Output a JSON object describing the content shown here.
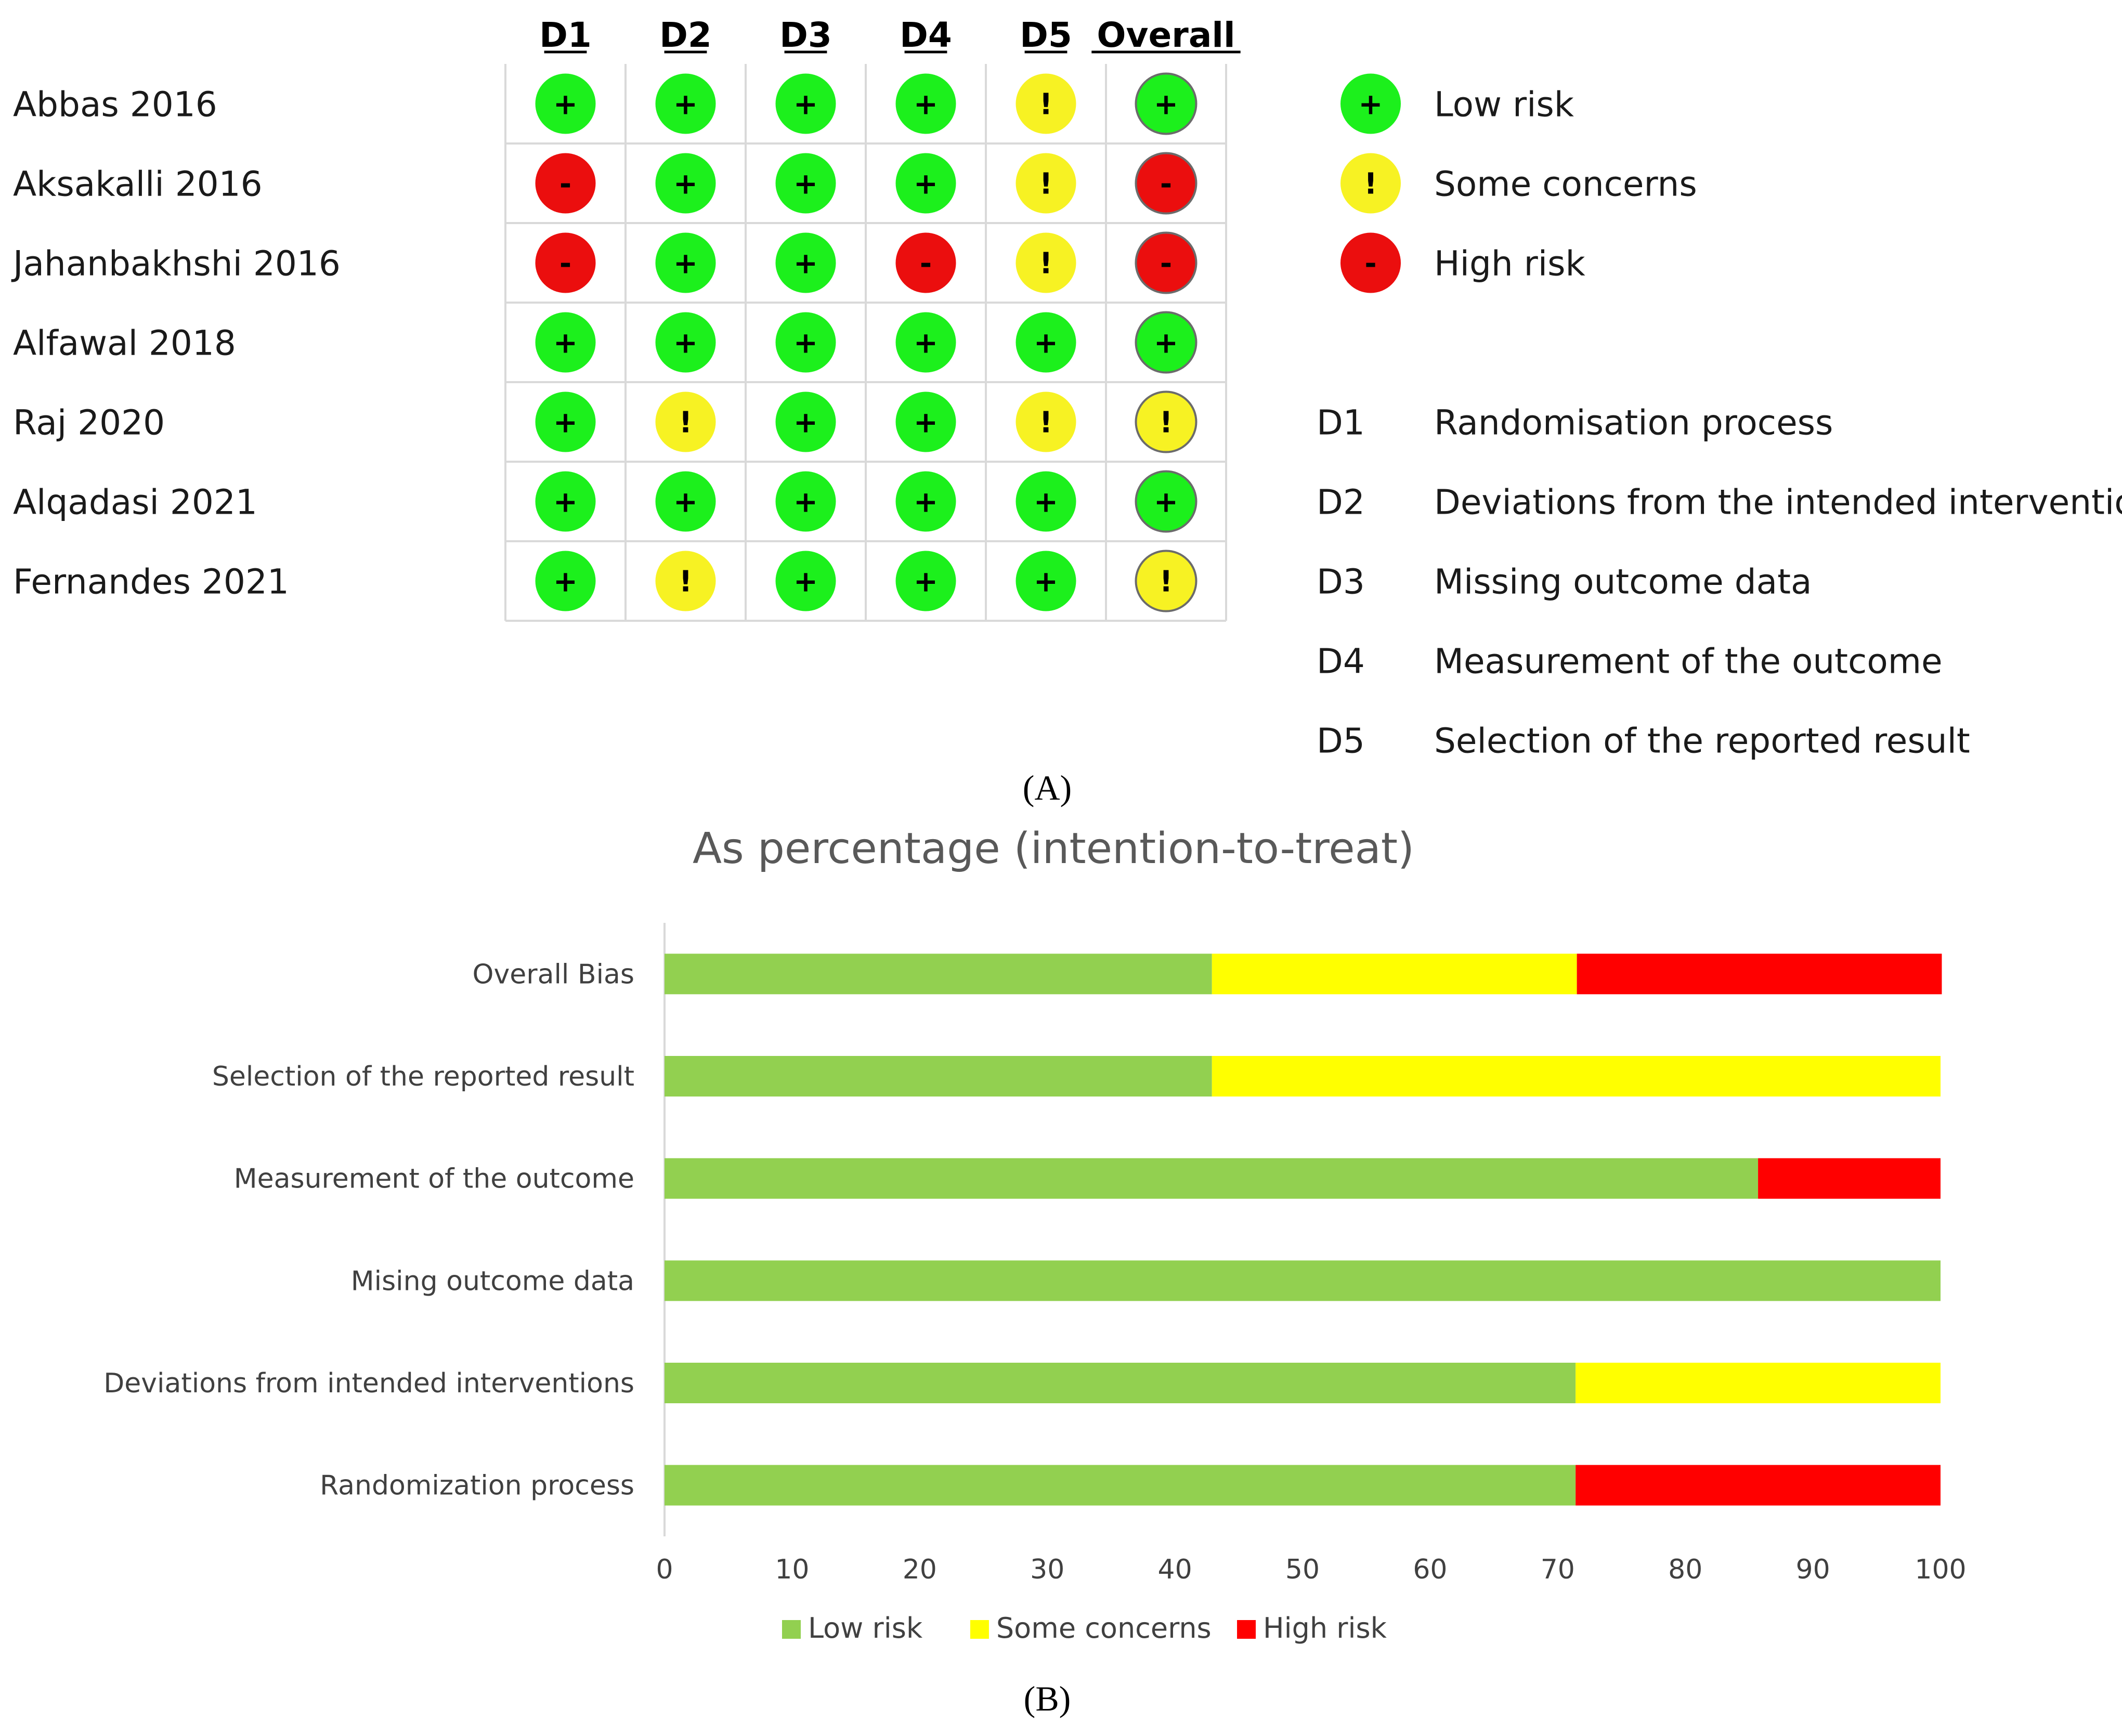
{
  "colors": {
    "low": "#1cf01c",
    "some": "#f7f223",
    "high": "#eb0e0e",
    "bar_low": "#92d050",
    "bar_some": "#ffff00",
    "bar_high": "#ff0000",
    "grid": "#d9d9d9",
    "text": "#1a1a1a",
    "title": "#595959"
  },
  "panel_a": {
    "label": "(A)",
    "domains": [
      "D1",
      "D2",
      "D3",
      "D4",
      "D5",
      "Overall"
    ],
    "symbols": {
      "low": "+",
      "some": "!",
      "high": "-"
    },
    "studies": [
      {
        "name": "Abbas 2016",
        "ratings": [
          "low",
          "low",
          "low",
          "low",
          "some",
          "low"
        ]
      },
      {
        "name": "Aksakalli 2016",
        "ratings": [
          "high",
          "low",
          "low",
          "low",
          "some",
          "high"
        ]
      },
      {
        "name": "Jahanbakhshi 2016",
        "ratings": [
          "high",
          "low",
          "low",
          "high",
          "some",
          "high"
        ]
      },
      {
        "name": "Alfawal 2018",
        "ratings": [
          "low",
          "low",
          "low",
          "low",
          "low",
          "low"
        ]
      },
      {
        "name": "Raj 2020",
        "ratings": [
          "low",
          "some",
          "low",
          "low",
          "some",
          "some"
        ]
      },
      {
        "name": "Alqadasi 2021",
        "ratings": [
          "low",
          "low",
          "low",
          "low",
          "low",
          "low"
        ]
      },
      {
        "name": "Fernandes 2021",
        "ratings": [
          "low",
          "some",
          "low",
          "low",
          "low",
          "some"
        ]
      }
    ],
    "legend": [
      {
        "key": "low",
        "label": "Low risk"
      },
      {
        "key": "some",
        "label": "Some concerns"
      },
      {
        "key": "high",
        "label": "High risk"
      }
    ],
    "domain_legend": [
      {
        "code": "D1",
        "label": "Randomisation process"
      },
      {
        "code": "D2",
        "label": "Deviations from the intended interventions"
      },
      {
        "code": "D3",
        "label": "Missing outcome data"
      },
      {
        "code": "D4",
        "label": "Measurement of the outcome"
      },
      {
        "code": "D5",
        "label": "Selection of the reported result"
      }
    ]
  },
  "panel_b": {
    "label": "(B)"
  },
  "chart_data": {
    "type": "bar",
    "orientation": "horizontal",
    "stacked": true,
    "title": "As percentage (intention-to-treat)",
    "categories": [
      "Overall Bias",
      "Selection of the reported result",
      "Measurement of the outcome",
      "Mising outcome data",
      "Deviations from intended interventions",
      "Randomization process"
    ],
    "series": [
      {
        "name": "Low risk",
        "key": "low",
        "values": [
          42.9,
          42.9,
          85.7,
          100,
          71.4,
          71.4
        ]
      },
      {
        "name": "Some concerns",
        "key": "some",
        "values": [
          28.6,
          57.1,
          0,
          0,
          28.6,
          0
        ]
      },
      {
        "name": "High risk",
        "key": "high",
        "values": [
          28.6,
          0,
          14.3,
          0,
          0,
          28.6
        ]
      }
    ],
    "xlim": [
      0,
      100
    ],
    "xticks": [
      0,
      10,
      20,
      30,
      40,
      50,
      60,
      70,
      80,
      90,
      100
    ],
    "xlabel": "",
    "ylabel": "",
    "legend_position": "bottom"
  }
}
